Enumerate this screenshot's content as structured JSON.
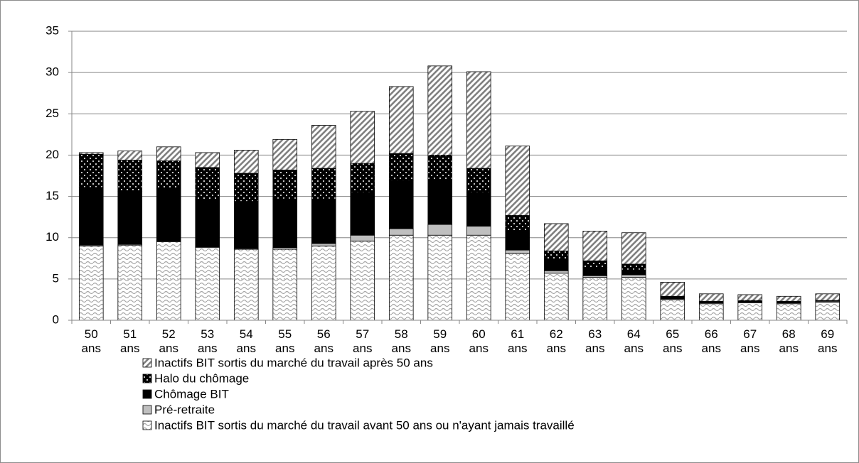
{
  "chart_data": {
    "type": "bar",
    "stacked": true,
    "categories": [
      "50 ans",
      "51 ans",
      "52 ans",
      "53 ans",
      "54 ans",
      "55 ans",
      "56 ans",
      "57 ans",
      "58 ans",
      "59 ans",
      "60 ans",
      "61 ans",
      "62 ans",
      "63 ans",
      "64 ans",
      "65 ans",
      "66 ans",
      "67 ans",
      "68 ans",
      "69 ans"
    ],
    "series": [
      {
        "name": "Inactifs BIT sortis du marché du travail avant 50 ans ou n'ayant jamais travaillé",
        "color": "#a6a6a6",
        "pattern": "wave",
        "values": [
          9.0,
          9.1,
          9.5,
          8.8,
          8.6,
          8.6,
          9.0,
          9.6,
          10.3,
          10.3,
          10.3,
          8.1,
          5.7,
          5.2,
          5.2,
          2.5,
          2.0,
          2.1,
          2.0,
          2.2
        ]
      },
      {
        "name": "Pré-retraite",
        "color": "#bfbfbf",
        "pattern": "solid",
        "values": [
          0.1,
          0.1,
          0.1,
          0.1,
          0.1,
          0.2,
          0.3,
          0.7,
          0.8,
          1.3,
          1.1,
          0.4,
          0.3,
          0.2,
          0.3,
          0.1,
          0.1,
          0.1,
          0.1,
          0.1
        ]
      },
      {
        "name": "Chômage BIT",
        "color": "#000000",
        "pattern": "solid",
        "values": [
          7.0,
          6.4,
          6.4,
          5.7,
          5.7,
          5.9,
          5.4,
          5.2,
          5.8,
          5.4,
          4.1,
          2.3,
          1.3,
          1.0,
          0.6,
          0.2,
          0.1,
          0.1,
          0.1,
          0.1
        ]
      },
      {
        "name": "Halo du chômage",
        "color": "#000000",
        "pattern": "dots",
        "values": [
          4.0,
          3.8,
          3.3,
          3.9,
          3.4,
          3.5,
          3.7,
          3.5,
          3.3,
          3.0,
          2.9,
          1.9,
          1.1,
          0.8,
          0.7,
          0.1,
          0.1,
          0.1,
          0.1,
          0.0
        ]
      },
      {
        "name": "Inactifs BIT sortis du marché du travail après 50 ans",
        "color": "#808080",
        "pattern": "hatch",
        "values": [
          0.2,
          1.1,
          1.7,
          1.8,
          2.8,
          3.7,
          5.2,
          6.3,
          8.1,
          10.8,
          11.7,
          8.4,
          3.3,
          3.6,
          3.8,
          1.7,
          0.9,
          0.7,
          0.6,
          0.8
        ]
      }
    ],
    "ylim": [
      0,
      35
    ],
    "yticks": [
      0,
      5,
      10,
      15,
      20,
      25,
      30,
      35
    ],
    "grid": true,
    "legend": "bottom"
  }
}
